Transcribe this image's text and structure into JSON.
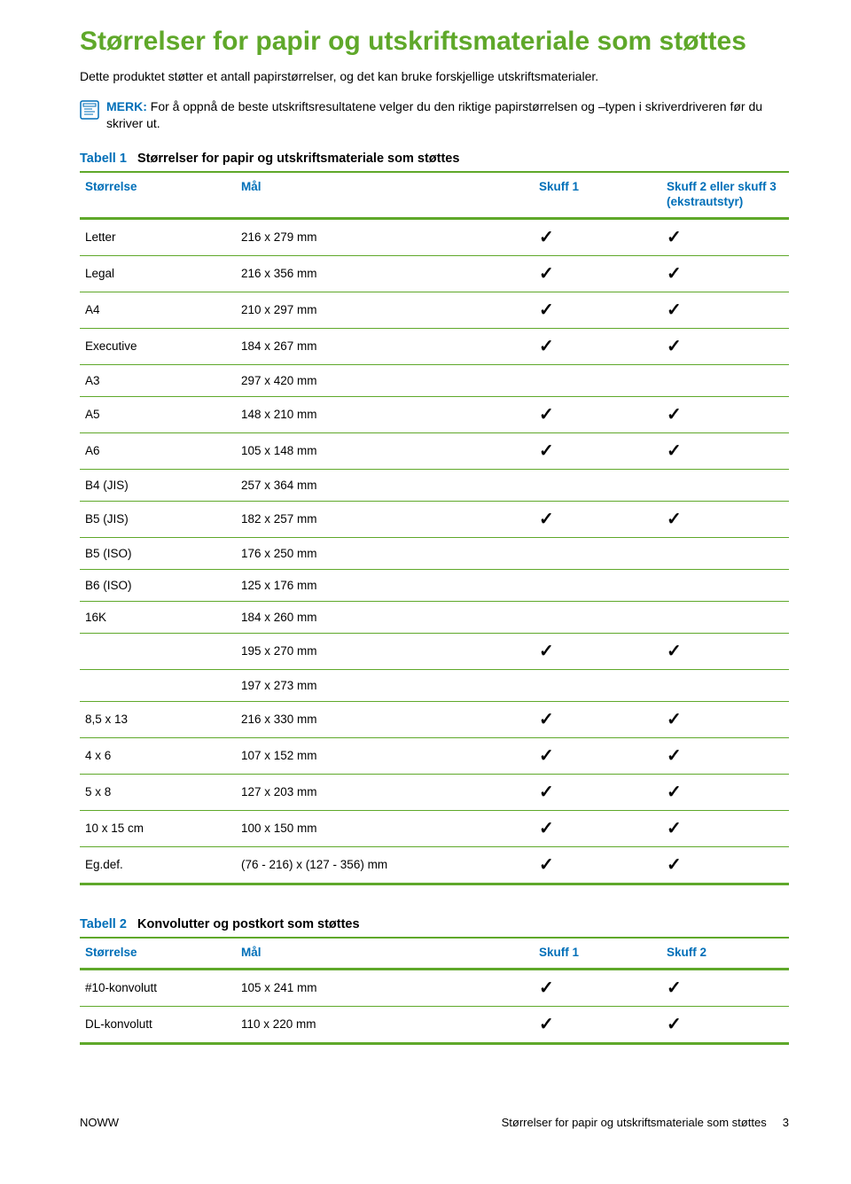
{
  "title": "Størrelser for papir og utskriftsmateriale som støttes",
  "intro": "Dette produktet støtter et antall papirstørrelser, og det kan bruke forskjellige utskriftsmaterialer.",
  "note": {
    "merk_label": "MERK:",
    "text": "For å oppnå de beste utskriftsresultatene velger du den riktige papirstørrelsen og –typen i skriverdriveren før du skriver ut."
  },
  "table1": {
    "caption_num": "Tabell 1",
    "caption_title": "Størrelser for papir og utskriftsmateriale som støttes",
    "headers": {
      "size": "Størrelse",
      "dim": "Mål",
      "s1": "Skuff 1",
      "s2": "Skuff 2 eller skuff 3 (ekstrautstyr)"
    },
    "rows": [
      {
        "size": "Letter",
        "dim": "216 x 279 mm",
        "s1": true,
        "s2": true
      },
      {
        "size": "Legal",
        "dim": "216 x 356 mm",
        "s1": true,
        "s2": true
      },
      {
        "size": "A4",
        "dim": "210 x 297 mm",
        "s1": true,
        "s2": true
      },
      {
        "size": "Executive",
        "dim": "184 x 267 mm",
        "s1": true,
        "s2": true
      },
      {
        "size": "A3",
        "dim": "297 x 420 mm",
        "s1": false,
        "s2": false
      },
      {
        "size": "A5",
        "dim": "148 x 210 mm",
        "s1": true,
        "s2": true
      },
      {
        "size": "A6",
        "dim": "105 x 148 mm",
        "s1": true,
        "s2": true
      },
      {
        "size": "B4 (JIS)",
        "dim": "257 x 364 mm",
        "s1": false,
        "s2": false
      },
      {
        "size": "B5 (JIS)",
        "dim": "182 x 257 mm",
        "s1": true,
        "s2": true
      },
      {
        "size": "B5 (ISO)",
        "dim": "176 x 250 mm",
        "s1": false,
        "s2": false
      },
      {
        "size": "B6 (ISO)",
        "dim": "125 x 176 mm",
        "s1": false,
        "s2": false
      },
      {
        "size": "16K",
        "dim": "184 x 260 mm",
        "s1": false,
        "s2": false
      },
      {
        "size": "",
        "dim": "195 x 270 mm",
        "s1": true,
        "s2": true
      },
      {
        "size": "",
        "dim": "197 x 273 mm",
        "s1": false,
        "s2": false
      },
      {
        "size": "8,5 x 13",
        "dim": "216 x 330 mm",
        "s1": true,
        "s2": true
      },
      {
        "size": "4 x 6",
        "dim": "107 x 152 mm",
        "s1": true,
        "s2": true
      },
      {
        "size": "5 x 8",
        "dim": "127 x 203 mm",
        "s1": true,
        "s2": true
      },
      {
        "size": "10 x 15 cm",
        "dim": "100 x 150 mm",
        "s1": true,
        "s2": true
      },
      {
        "size": "Eg.def.",
        "dim": "(76 - 216) x (127 - 356) mm",
        "s1": true,
        "s2": true
      }
    ]
  },
  "table2": {
    "caption_num": "Tabell 2",
    "caption_title": "Konvolutter og postkort som støttes",
    "headers": {
      "size": "Størrelse",
      "dim": "Mål",
      "s1": "Skuff 1",
      "s2": "Skuff 2"
    },
    "rows": [
      {
        "size": "#10-konvolutt",
        "dim": "105 x 241 mm",
        "s1": true,
        "s2": true
      },
      {
        "size": "DL-konvolutt",
        "dim": "110 x 220 mm",
        "s1": true,
        "s2": true
      }
    ]
  },
  "footer": {
    "left": "NOWW",
    "right_text": "Størrelser for papir og utskriftsmateriale som støttes",
    "page_num": "3"
  },
  "colors": {
    "green": "#5fa82a",
    "blue": "#006fb8",
    "text": "#000000",
    "bg": "#ffffff"
  }
}
